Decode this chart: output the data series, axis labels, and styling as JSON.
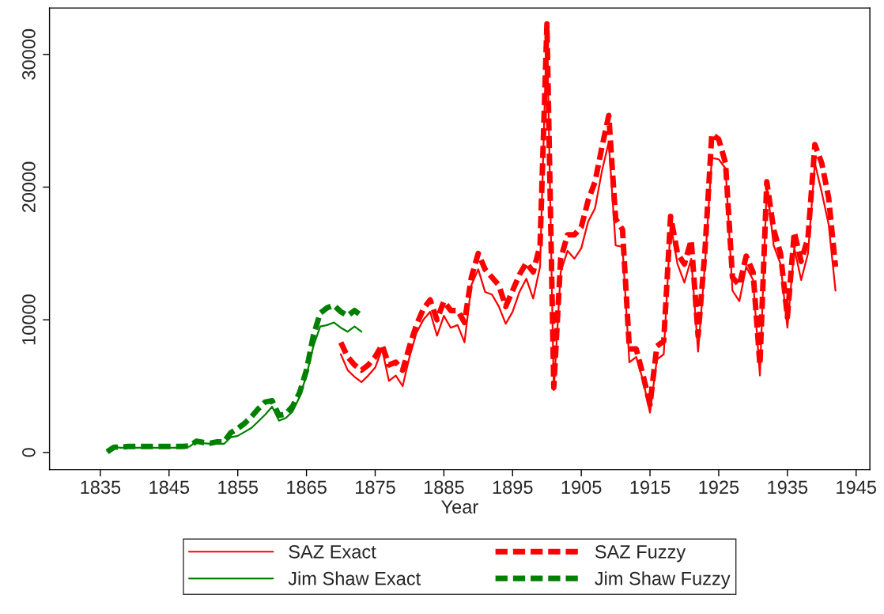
{
  "chart_data": {
    "type": "line",
    "xlabel": "Year",
    "xlim": [
      1827.6,
      1947
    ],
    "ylim": [
      -1300,
      33500
    ],
    "xticks": [
      1835,
      1845,
      1855,
      1865,
      1875,
      1885,
      1895,
      1905,
      1915,
      1925,
      1935,
      1945
    ],
    "yticks": [
      0,
      10000,
      20000,
      30000
    ],
    "grid": false,
    "legend": "bottom",
    "series": [
      {
        "name": "SAZ Exact",
        "color": "#ff0000",
        "line_style": "solid",
        "x": [
          1870,
          1871,
          1872,
          1873,
          1874,
          1875,
          1876,
          1877,
          1878,
          1879,
          1880,
          1881,
          1882,
          1883,
          1884,
          1885,
          1886,
          1887,
          1888,
          1889,
          1890,
          1891,
          1892,
          1893,
          1894,
          1895,
          1896,
          1897,
          1898,
          1899,
          1900,
          1901,
          1902,
          1903,
          1904,
          1905,
          1906,
          1907,
          1908,
          1909,
          1910,
          1911,
          1912,
          1913,
          1914,
          1915,
          1916,
          1917,
          1918,
          1919,
          1920,
          1921,
          1922,
          1923,
          1924,
          1925,
          1926,
          1927,
          1928,
          1929,
          1930,
          1931,
          1932,
          1933,
          1934,
          1935,
          1936,
          1937,
          1938,
          1939,
          1940,
          1941,
          1942
        ],
        "values": [
          7400,
          6200,
          5700,
          5300,
          5800,
          6400,
          7800,
          5400,
          5800,
          5000,
          7200,
          9000,
          10000,
          10600,
          8800,
          10300,
          9400,
          9600,
          8300,
          12600,
          13800,
          12100,
          11900,
          11000,
          9700,
          10600,
          12100,
          13100,
          11600,
          14000,
          32300,
          4700,
          13600,
          15200,
          14600,
          15400,
          17400,
          18400,
          21200,
          23400,
          15600,
          15500,
          6800,
          7200,
          5400,
          3000,
          7000,
          7400,
          17200,
          14200,
          12800,
          14600,
          7600,
          14200,
          22200,
          22100,
          21400,
          12200,
          11400,
          14000,
          13000,
          5800,
          20200,
          15600,
          14200,
          9400,
          15400,
          13000,
          15000,
          21800,
          19600,
          17200,
          12200
        ]
      },
      {
        "name": "SAZ Fuzzy",
        "color": "#ff0000",
        "line_style": "dashed",
        "x": [
          1870,
          1871,
          1872,
          1873,
          1874,
          1875,
          1876,
          1877,
          1878,
          1879,
          1880,
          1881,
          1882,
          1883,
          1884,
          1885,
          1886,
          1887,
          1888,
          1889,
          1890,
          1891,
          1892,
          1893,
          1894,
          1895,
          1896,
          1897,
          1898,
          1899,
          1900,
          1901,
          1902,
          1903,
          1904,
          1905,
          1906,
          1907,
          1908,
          1909,
          1910,
          1911,
          1912,
          1913,
          1914,
          1915,
          1916,
          1917,
          1918,
          1919,
          1920,
          1921,
          1922,
          1923,
          1924,
          1925,
          1926,
          1927,
          1928,
          1929,
          1930,
          1931,
          1932,
          1933,
          1934,
          1935,
          1936,
          1937,
          1938,
          1939,
          1940,
          1941,
          1942
        ],
        "values": [
          8300,
          7200,
          6600,
          6200,
          6600,
          7200,
          8100,
          6600,
          6800,
          6200,
          8000,
          9600,
          10800,
          11500,
          10000,
          11400,
          10700,
          10700,
          9800,
          13200,
          15000,
          13800,
          13200,
          12600,
          11000,
          12200,
          13400,
          14300,
          13600,
          15600,
          32300,
          4900,
          14600,
          16400,
          16400,
          17000,
          19000,
          20400,
          23000,
          25400,
          17600,
          16800,
          7800,
          7800,
          5800,
          3600,
          8000,
          8400,
          17800,
          15000,
          14200,
          16000,
          8800,
          15200,
          24000,
          23600,
          21800,
          13200,
          12600,
          14800,
          13600,
          6600,
          20400,
          16800,
          15000,
          10200,
          16600,
          14400,
          16200,
          23200,
          21800,
          19200,
          14000
        ]
      },
      {
        "name": "Jim Shaw Exact",
        "color": "#008000",
        "line_style": "solid",
        "x": [
          1836,
          1837,
          1838,
          1839,
          1840,
          1841,
          1842,
          1843,
          1844,
          1845,
          1846,
          1847,
          1848,
          1849,
          1850,
          1851,
          1852,
          1853,
          1854,
          1855,
          1856,
          1857,
          1858,
          1859,
          1860,
          1861,
          1862,
          1863,
          1864,
          1865,
          1866,
          1867,
          1868,
          1869,
          1870,
          1871,
          1872,
          1873
        ],
        "values": [
          100,
          400,
          350,
          350,
          350,
          350,
          350,
          350,
          350,
          350,
          350,
          400,
          450,
          850,
          700,
          650,
          650,
          650,
          1150,
          1250,
          1550,
          1850,
          2350,
          2850,
          3450,
          2400,
          2600,
          3100,
          4200,
          5800,
          8000,
          9500,
          9600,
          9800,
          9400,
          9100,
          9500,
          9100
        ]
      },
      {
        "name": "Jim Shaw Fuzzy",
        "color": "#008000",
        "line_style": "dashed",
        "x": [
          1836,
          1837,
          1838,
          1839,
          1840,
          1841,
          1842,
          1843,
          1844,
          1845,
          1846,
          1847,
          1848,
          1849,
          1850,
          1851,
          1852,
          1853,
          1854,
          1855,
          1856,
          1857,
          1858,
          1859,
          1860,
          1861,
          1862,
          1863,
          1864,
          1865,
          1866,
          1867,
          1868,
          1869,
          1870,
          1871,
          1872,
          1873
        ],
        "values": [
          50,
          400,
          400,
          450,
          450,
          450,
          450,
          450,
          450,
          450,
          450,
          450,
          500,
          850,
          750,
          700,
          800,
          800,
          1500,
          1800,
          2200,
          2700,
          3300,
          3800,
          3900,
          2800,
          2900,
          3500,
          4500,
          6200,
          8800,
          10500,
          10900,
          11100,
          10600,
          10300,
          10700,
          10300
        ]
      }
    ]
  }
}
